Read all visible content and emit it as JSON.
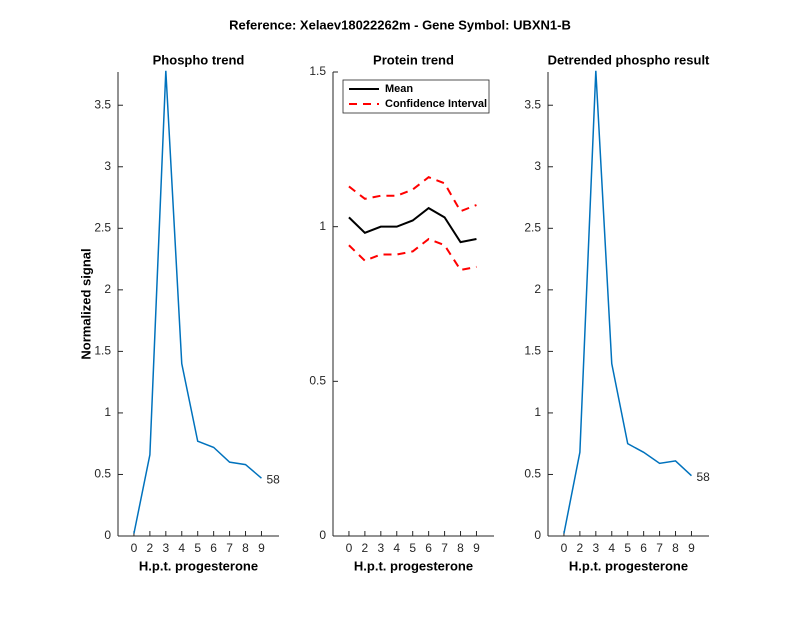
{
  "title": "Reference:  Xelaev18022262m - Gene Symbol:  UBXN1-B",
  "chart_data": [
    {
      "type": "line",
      "title": "Phospho trend",
      "xlabel": "H.p.t. progesterone",
      "ylabel": "Normalized signal",
      "categories": [
        "0",
        "2",
        "3",
        "4",
        "5",
        "6",
        "7",
        "8",
        "9"
      ],
      "series": [
        {
          "color": "#0072bd",
          "values": [
            0.02,
            0.66,
            3.78,
            1.4,
            0.77,
            0.72,
            0.6,
            0.58,
            0.47
          ]
        }
      ],
      "annotation": "58",
      "ylim": [
        0,
        3.77
      ],
      "yticks": [
        0,
        0.5,
        1,
        1.5,
        2,
        2.5,
        3,
        3.5
      ]
    },
    {
      "type": "band",
      "title": "Protein trend",
      "xlabel": "H.p.t. progesterone",
      "categories": [
        "0",
        "2",
        "3",
        "4",
        "5",
        "6",
        "7",
        "8",
        "9"
      ],
      "series": [
        {
          "name": "Mean",
          "color": "#000000",
          "values": [
            1.03,
            0.98,
            1.0,
            1.0,
            1.02,
            1.06,
            1.03,
            0.95,
            0.96
          ]
        },
        {
          "name": "Confidence Interval",
          "color": "#ff0000",
          "dashed": true,
          "upper": [
            1.13,
            1.09,
            1.1,
            1.1,
            1.12,
            1.16,
            1.14,
            1.05,
            1.07
          ],
          "lower": [
            0.94,
            0.89,
            0.91,
            0.91,
            0.92,
            0.96,
            0.94,
            0.86,
            0.87
          ]
        }
      ],
      "legend": "upper left",
      "ylim": [
        0,
        1.5
      ],
      "yticks": [
        0,
        0.5,
        1,
        1.5
      ]
    },
    {
      "type": "line",
      "title": "Detrended phospho result",
      "xlabel": "H.p.t. progesterone",
      "categories": [
        "0",
        "2",
        "3",
        "4",
        "5",
        "6",
        "7",
        "8",
        "9"
      ],
      "series": [
        {
          "color": "#0072bd",
          "values": [
            0.02,
            0.68,
            3.78,
            1.4,
            0.75,
            0.68,
            0.59,
            0.61,
            0.49
          ]
        }
      ],
      "annotation": "58",
      "ylim": [
        0,
        3.77
      ],
      "yticks": [
        0,
        0.5,
        1,
        1.5,
        2,
        2.5,
        3,
        3.5
      ]
    }
  ]
}
